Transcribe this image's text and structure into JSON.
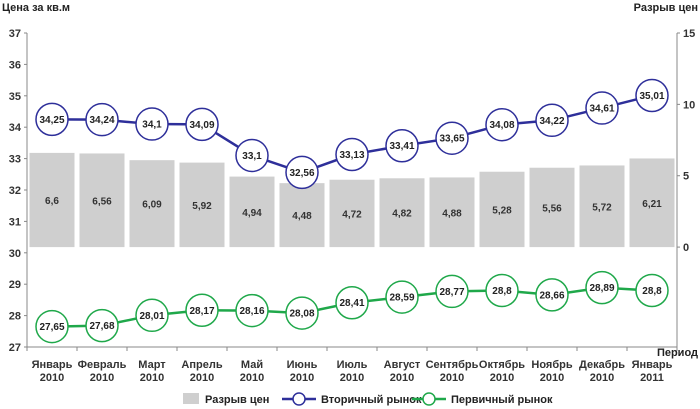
{
  "chart_data": {
    "type": "bar+line",
    "categories": [
      "Январь 2010",
      "Февраль 2010",
      "Март 2010",
      "Апрель 2010",
      "Май 2010",
      "Июнь 2010",
      "Июль 2010",
      "Август 2010",
      "Сентябрь 2010",
      "Октябрь 2010",
      "Ноябрь 2010",
      "Декабрь 2010",
      "Январь 2011"
    ],
    "categories_lines": [
      [
        "Январь",
        "2010"
      ],
      [
        "Февраль",
        "2010"
      ],
      [
        "Март",
        "2010"
      ],
      [
        "Апрель",
        "2010"
      ],
      [
        "Май",
        "2010"
      ],
      [
        "Июнь",
        "2010"
      ],
      [
        "Июль",
        "2010"
      ],
      [
        "Август",
        "2010"
      ],
      [
        "Сентябрь",
        "2010"
      ],
      [
        "Октябрь",
        "2010"
      ],
      [
        "Ноябрь",
        "2010"
      ],
      [
        "Декабрь",
        "2010"
      ],
      [
        "Январь",
        "2011"
      ]
    ],
    "series": [
      {
        "name": "Разрыв цен",
        "type": "bar",
        "axis": "right",
        "color": "#cfcfcf",
        "values": [
          6.6,
          6.56,
          6.09,
          5.92,
          4.94,
          4.48,
          4.72,
          4.82,
          4.88,
          5.28,
          5.56,
          5.72,
          6.21
        ],
        "labels": [
          "6,6",
          "6,56",
          "6,09",
          "5,92",
          "4,94",
          "4,48",
          "4,72",
          "4,82",
          "4,88",
          "5,28",
          "5,56",
          "5,72",
          "6,21"
        ]
      },
      {
        "name": "Вторичный рынок",
        "type": "line",
        "axis": "left",
        "color": "#2e2f9a",
        "values": [
          34.25,
          34.24,
          34.1,
          34.09,
          33.1,
          32.56,
          33.13,
          33.41,
          33.65,
          34.08,
          34.22,
          34.61,
          35.01
        ],
        "labels": [
          "34,25",
          "34,24",
          "34,1",
          "34,09",
          "33,1",
          "32,56",
          "33,13",
          "33,41",
          "33,65",
          "34,08",
          "34,22",
          "34,61",
          "35,01"
        ]
      },
      {
        "name": "Первичный рынок",
        "type": "line",
        "axis": "left",
        "color": "#1fa84a",
        "values": [
          27.65,
          27.68,
          28.01,
          28.17,
          28.16,
          28.08,
          28.41,
          28.59,
          28.77,
          28.8,
          28.66,
          28.89,
          28.8
        ],
        "labels": [
          "27,65",
          "27,68",
          "28,01",
          "28,17",
          "28,16",
          "28,08",
          "28,41",
          "28,59",
          "28,77",
          "28,8",
          "28,66",
          "28,89",
          "28,8"
        ]
      }
    ],
    "left_axis": {
      "title": "Цена за кв.м",
      "min": 27,
      "max": 37,
      "ticks": [
        "27",
        "28",
        "29",
        "30",
        "31",
        "32",
        "33",
        "34",
        "35",
        "36",
        "37"
      ]
    },
    "right_axis": {
      "title": "Разрыв цен",
      "min": -7,
      "max": 15,
      "ticks": [
        "0",
        "5",
        "10",
        "15"
      ]
    },
    "x_axis": {
      "title": "Период"
    },
    "grid": false,
    "legend_position": "bottom"
  }
}
